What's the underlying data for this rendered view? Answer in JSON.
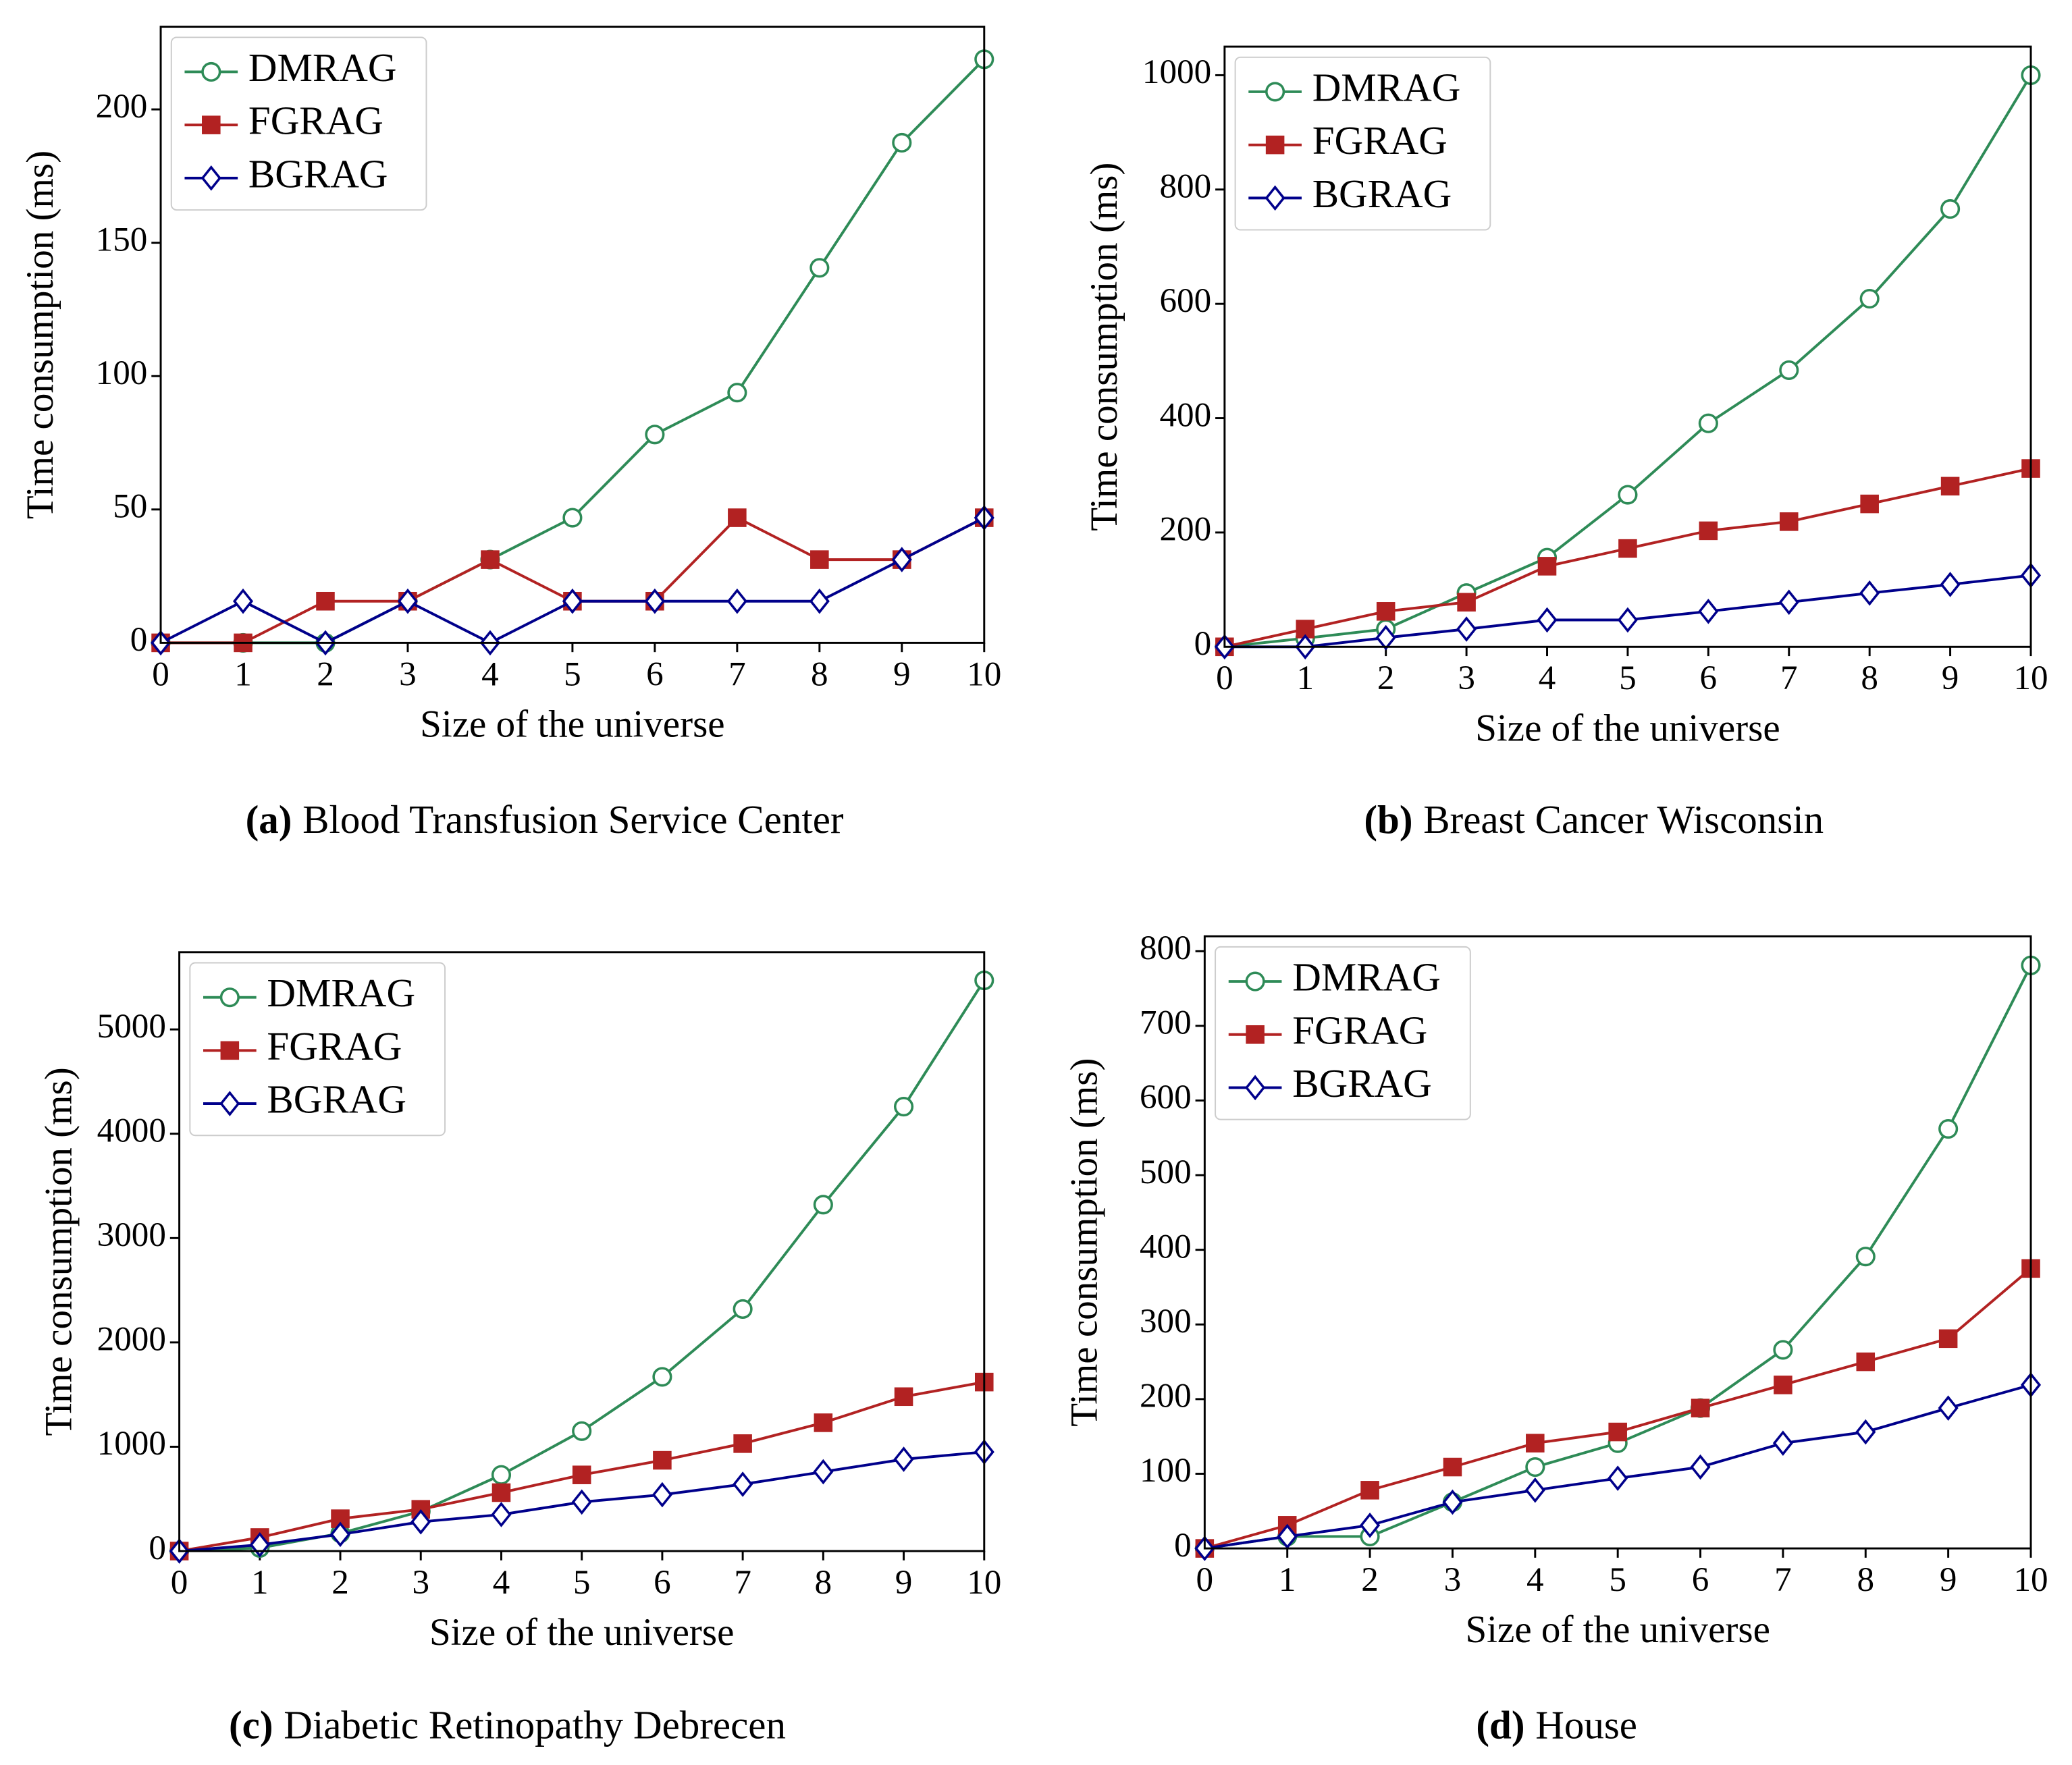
{
  "chart_data": [
    {
      "type": "line",
      "label": "(a)",
      "title": "Blood Transfusion Service Center",
      "xlabel": "Size of the universe",
      "ylabel": "Time consumption (ms)",
      "x": [
        0,
        1,
        2,
        3,
        4,
        5,
        6,
        7,
        8,
        9,
        10
      ],
      "xlim": [
        0,
        10
      ],
      "xticks": [
        0,
        1,
        2,
        3,
        4,
        5,
        6,
        7,
        8,
        9,
        10
      ],
      "ylim": [
        0,
        231
      ],
      "yticks": [
        0,
        50,
        100,
        150,
        200
      ],
      "legend": "upper left",
      "series": [
        {
          "name": "DMRAG",
          "color": "#2e8b57",
          "marker": "circle",
          "values": [
            0,
            0,
            0,
            15.6,
            31.2,
            46.9,
            78.1,
            93.8,
            140.6,
            187.5,
            218.8
          ]
        },
        {
          "name": "FGRAG",
          "color": "#b22222",
          "marker": "square",
          "values": [
            0,
            0,
            15.6,
            15.6,
            31.2,
            15.6,
            15.6,
            46.9,
            31.2,
            31.2,
            46.9
          ]
        },
        {
          "name": "BGRAG",
          "color": "#00008b",
          "marker": "diamond",
          "values": [
            0,
            15.6,
            0,
            15.6,
            0,
            15.6,
            15.6,
            15.6,
            15.6,
            31.2,
            46.9
          ]
        }
      ]
    },
    {
      "type": "line",
      "label": "(b)",
      "title": "Breast Cancer Wisconsin",
      "xlabel": "Size of the universe",
      "ylabel": "Time consumption (ms)",
      "x": [
        0,
        1,
        2,
        3,
        4,
        5,
        6,
        7,
        8,
        9,
        10
      ],
      "xlim": [
        0,
        10
      ],
      "xticks": [
        0,
        1,
        2,
        3,
        4,
        5,
        6,
        7,
        8,
        9,
        10
      ],
      "ylim": [
        0,
        1050
      ],
      "yticks": [
        0,
        200,
        400,
        600,
        800,
        1000
      ],
      "legend": "upper left",
      "series": [
        {
          "name": "DMRAG",
          "color": "#2e8b57",
          "marker": "circle",
          "values": [
            0,
            15,
            31,
            94,
            156,
            266,
            391,
            484,
            609,
            766,
            1000
          ]
        },
        {
          "name": "FGRAG",
          "color": "#b22222",
          "marker": "square",
          "values": [
            0,
            31,
            62,
            78,
            141,
            172,
            203,
            219,
            250,
            281,
            312
          ]
        },
        {
          "name": "BGRAG",
          "color": "#00008b",
          "marker": "diamond",
          "values": [
            0,
            0,
            16,
            31,
            47,
            47,
            62,
            78,
            94,
            109,
            125
          ]
        }
      ]
    },
    {
      "type": "line",
      "label": "(c)",
      "title": "Diabetic Retinopathy Debrecen",
      "xlabel": "Size of the universe",
      "ylabel": "Time consumption (ms)",
      "x": [
        0,
        1,
        2,
        3,
        4,
        5,
        6,
        7,
        8,
        9,
        10
      ],
      "xlim": [
        0,
        10
      ],
      "xticks": [
        0,
        1,
        2,
        3,
        4,
        5,
        6,
        7,
        8,
        9,
        10
      ],
      "ylim": [
        0,
        5740
      ],
      "yticks": [
        0,
        1000,
        2000,
        3000,
        4000,
        5000
      ],
      "legend": "upper left",
      "series": [
        {
          "name": "DMRAG",
          "color": "#2e8b57",
          "marker": "circle",
          "values": [
            0,
            30,
            170,
            380,
            730,
            1150,
            1670,
            2320,
            3320,
            4260,
            5470
          ]
        },
        {
          "name": "FGRAG",
          "color": "#b22222",
          "marker": "square",
          "values": [
            0,
            130,
            310,
            400,
            560,
            730,
            870,
            1030,
            1230,
            1480,
            1620
          ]
        },
        {
          "name": "BGRAG",
          "color": "#00008b",
          "marker": "diamond",
          "values": [
            0,
            60,
            160,
            280,
            350,
            470,
            540,
            640,
            760,
            880,
            950
          ]
        }
      ]
    },
    {
      "type": "line",
      "label": "(d)",
      "title": "House",
      "xlabel": "Size of the universe",
      "ylabel": "Time consumption (ms)",
      "x": [
        0,
        1,
        2,
        3,
        4,
        5,
        6,
        7,
        8,
        9,
        10
      ],
      "xlim": [
        0,
        10
      ],
      "xticks": [
        0,
        1,
        2,
        3,
        4,
        5,
        6,
        7,
        8,
        9,
        10
      ],
      "ylim": [
        0,
        820
      ],
      "yticks": [
        0,
        100,
        200,
        300,
        400,
        500,
        600,
        700,
        800
      ],
      "legend": "upper left",
      "series": [
        {
          "name": "DMRAG",
          "color": "#2e8b57",
          "marker": "circle",
          "values": [
            0,
            16,
            16,
            62,
            109,
            141,
            188,
            266,
            391,
            562,
            781
          ]
        },
        {
          "name": "FGRAG",
          "color": "#b22222",
          "marker": "square",
          "values": [
            0,
            31,
            78,
            109,
            141,
            156,
            188,
            219,
            250,
            281,
            375
          ]
        },
        {
          "name": "BGRAG",
          "color": "#00008b",
          "marker": "diamond",
          "values": [
            0,
            16,
            31,
            62,
            78,
            94,
            109,
            141,
            156,
            188,
            219
          ]
        }
      ]
    }
  ]
}
